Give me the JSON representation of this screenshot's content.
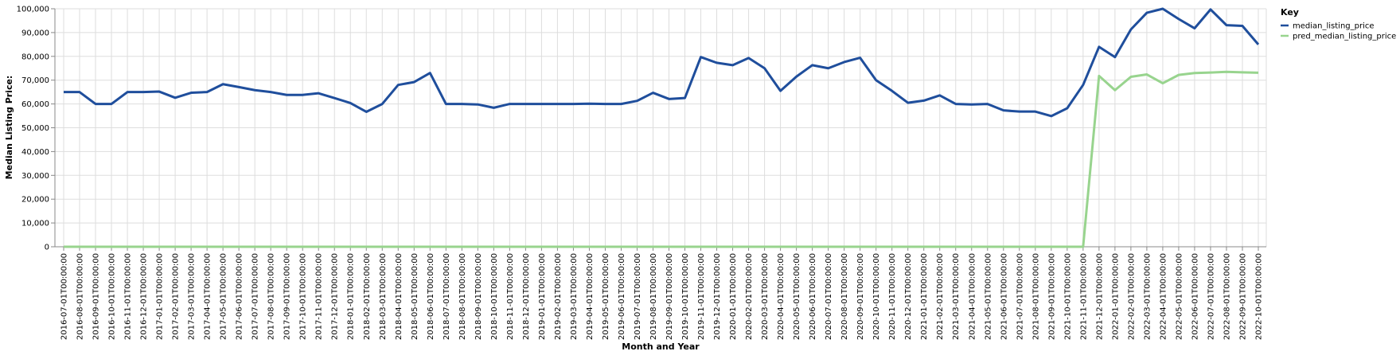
{
  "chart_data": {
    "type": "line",
    "xlabel": "Month and Year",
    "ylabel": "Median Listing Price:",
    "ylim": [
      0,
      100000
    ],
    "y_ticks": [
      0,
      10000,
      20000,
      30000,
      40000,
      50000,
      60000,
      70000,
      80000,
      90000,
      100000
    ],
    "y_tick_labels": [
      "0",
      "10,000",
      "20,000",
      "30,000",
      "40,000",
      "50,000",
      "60,000",
      "70,000",
      "80,000",
      "90,000",
      "100,000"
    ],
    "grid": true,
    "legend": {
      "title": "Key",
      "placement": "top-right"
    },
    "x": [
      "2016-07-01T00:00:00",
      "2016-08-01T00:00:00",
      "2016-09-01T00:00:00",
      "2016-10-01T00:00:00",
      "2016-11-01T00:00:00",
      "2016-12-01T00:00:00",
      "2017-01-01T00:00:00",
      "2017-02-01T00:00:00",
      "2017-03-01T00:00:00",
      "2017-04-01T00:00:00",
      "2017-05-01T00:00:00",
      "2017-06-01T00:00:00",
      "2017-07-01T00:00:00",
      "2017-08-01T00:00:00",
      "2017-09-01T00:00:00",
      "2017-10-01T00:00:00",
      "2017-11-01T00:00:00",
      "2017-12-01T00:00:00",
      "2018-01-01T00:00:00",
      "2018-02-01T00:00:00",
      "2018-03-01T00:00:00",
      "2018-04-01T00:00:00",
      "2018-05-01T00:00:00",
      "2018-06-01T00:00:00",
      "2018-07-01T00:00:00",
      "2018-08-01T00:00:00",
      "2018-09-01T00:00:00",
      "2018-10-01T00:00:00",
      "2018-11-01T00:00:00",
      "2018-12-01T00:00:00",
      "2019-01-01T00:00:00",
      "2019-02-01T00:00:00",
      "2019-03-01T00:00:00",
      "2019-04-01T00:00:00",
      "2019-05-01T00:00:00",
      "2019-06-01T00:00:00",
      "2019-07-01T00:00:00",
      "2019-08-01T00:00:00",
      "2019-09-01T00:00:00",
      "2019-10-01T00:00:00",
      "2019-11-01T00:00:00",
      "2019-12-01T00:00:00",
      "2020-01-01T00:00:00",
      "2020-02-01T00:00:00",
      "2020-03-01T00:00:00",
      "2020-04-01T00:00:00",
      "2020-05-01T00:00:00",
      "2020-06-01T00:00:00",
      "2020-07-01T00:00:00",
      "2020-08-01T00:00:00",
      "2020-09-01T00:00:00",
      "2020-10-01T00:00:00",
      "2020-11-01T00:00:00",
      "2020-12-01T00:00:00",
      "2021-01-01T00:00:00",
      "2021-02-01T00:00:00",
      "2021-03-01T00:00:00",
      "2021-04-01T00:00:00",
      "2021-05-01T00:00:00",
      "2021-06-01T00:00:00",
      "2021-07-01T00:00:00",
      "2021-08-01T00:00:00",
      "2021-09-01T00:00:00",
      "2021-10-01T00:00:00",
      "2021-11-01T00:00:00",
      "2021-12-01T00:00:00",
      "2022-01-01T00:00:00",
      "2022-02-01T00:00:00",
      "2022-03-01T00:00:00",
      "2022-04-01T00:00:00",
      "2022-05-01T00:00:00",
      "2022-06-01T00:00:00",
      "2022-07-01T00:00:00",
      "2022-08-01T00:00:00",
      "2022-09-01T00:00:00",
      "2022-10-01T00:00:00"
    ],
    "series": [
      {
        "name": "median_listing_price",
        "color": "#1f4e9c",
        "values": [
          65000,
          65000,
          60000,
          60000,
          65000,
          65000,
          65200,
          62600,
          64700,
          65000,
          68300,
          67100,
          65800,
          65000,
          63800,
          63800,
          64500,
          62500,
          60400,
          56700,
          60000,
          68000,
          69200,
          73000,
          60000,
          60000,
          59800,
          58400,
          60000,
          60000,
          60000,
          60000,
          60000,
          60100,
          60000,
          60000,
          61300,
          64700,
          62100,
          62500,
          79700,
          77300,
          76300,
          79300,
          75000,
          65500,
          71500,
          76300,
          75000,
          77600,
          79400,
          70000,
          65500,
          60500,
          61400,
          63600,
          60000,
          59800,
          60000,
          57300,
          56800,
          56800,
          54900,
          58200,
          68000,
          84000,
          79700,
          91300,
          98300,
          100000,
          95700,
          91800,
          99700,
          93100,
          92800,
          85000
        ]
      },
      {
        "name": "pred_median_listing_price",
        "color": "#98d48e",
        "values": [
          0,
          0,
          0,
          0,
          0,
          0,
          0,
          0,
          0,
          0,
          0,
          0,
          0,
          0,
          0,
          0,
          0,
          0,
          0,
          0,
          0,
          0,
          0,
          0,
          0,
          0,
          0,
          0,
          0,
          0,
          0,
          0,
          0,
          0,
          0,
          0,
          0,
          0,
          0,
          0,
          0,
          0,
          0,
          0,
          0,
          0,
          0,
          0,
          0,
          0,
          0,
          0,
          0,
          0,
          0,
          0,
          0,
          0,
          0,
          0,
          0,
          0,
          0,
          0,
          0,
          71800,
          65800,
          71400,
          72400,
          68700,
          72200,
          73000,
          73200,
          73500,
          73300,
          73100
        ]
      }
    ]
  }
}
